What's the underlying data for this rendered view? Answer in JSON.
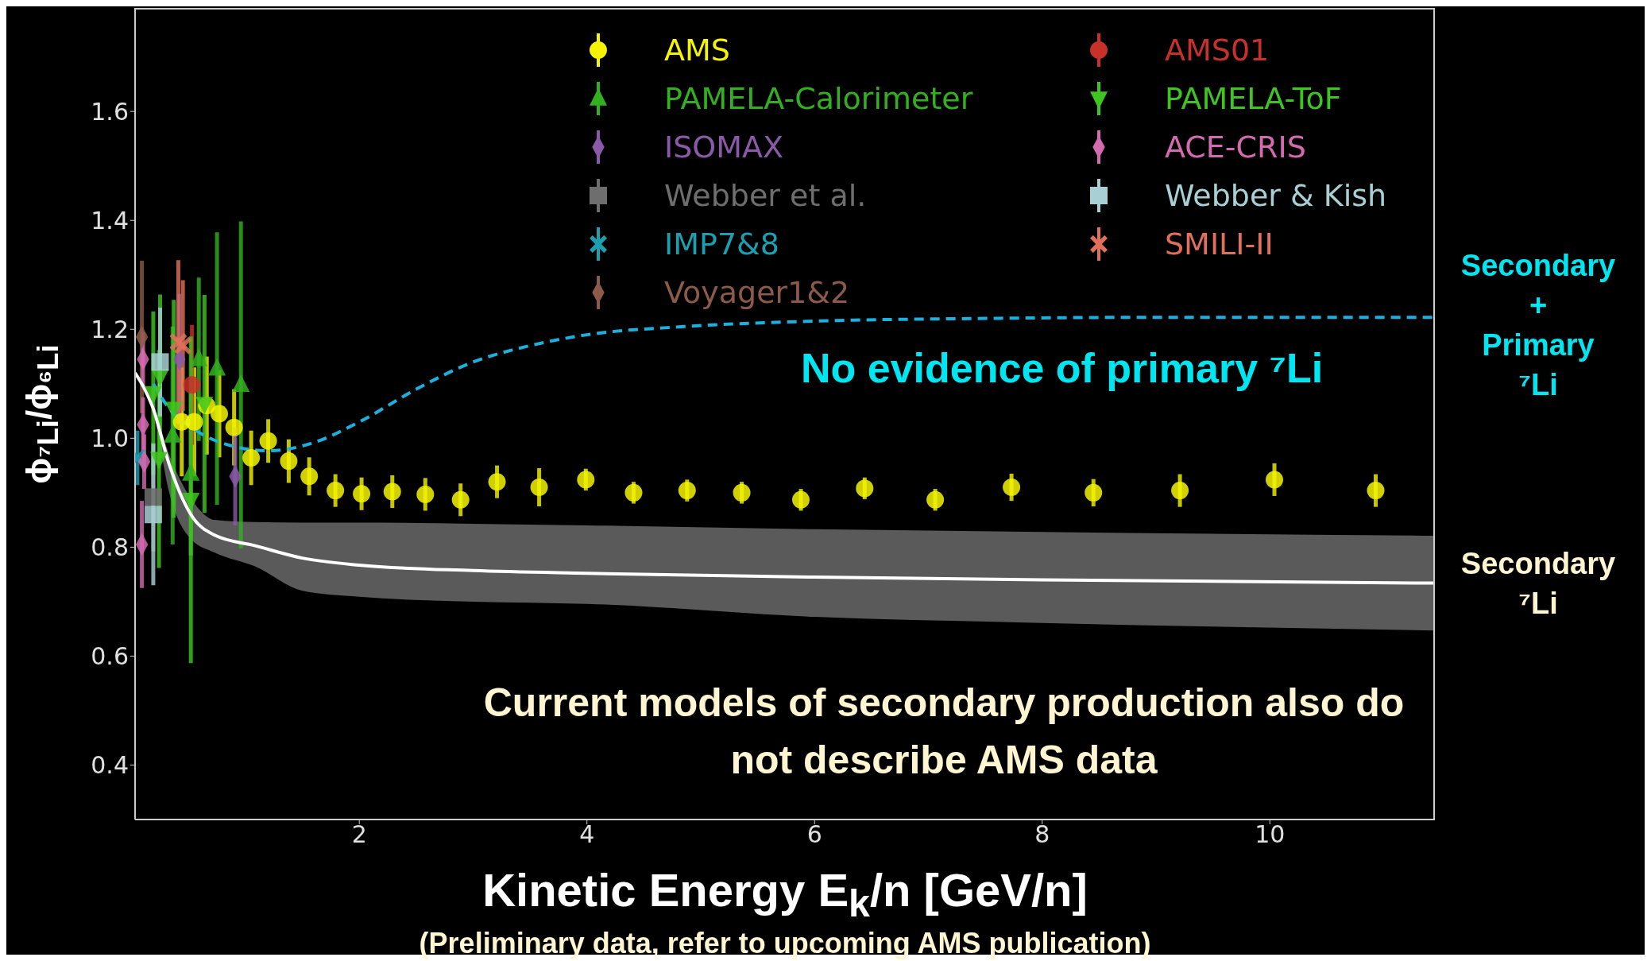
{
  "chart_data": {
    "type": "scatter",
    "xlabel": "Kinetic Energy E$_{k}$/n [GeV/n]",
    "ylabel": "ϕ$_{⁷Li}$/ϕ$_{⁶Li}$",
    "xlim": [
      0.03,
      11.45
    ],
    "ylim": [
      0.3,
      1.79
    ],
    "xticks": [
      2,
      4,
      6,
      8,
      10
    ],
    "yticks": [
      {
        "value": 0.4,
        "label": "0.4"
      },
      {
        "value": 0.6,
        "label": "0.6"
      },
      {
        "value": 0.8,
        "label": "0.8"
      },
      {
        "value": 1,
        "label": "1.0"
      },
      {
        "value": 1.2,
        "label": "1.2"
      },
      {
        "value": 1.4,
        "label": "1.4"
      },
      {
        "value": 1.6,
        "label": "1.6"
      }
    ],
    "legend": "top",
    "annotations": [
      "No evidence of primary ⁷Li",
      "Current models of secondary production also do not describe AMS data",
      "(Preliminary data, refer to upcoming AMS publication)"
    ],
    "series": [
      {
        "name": "AMS",
        "marker": "circle",
        "color": "#f5f500",
        "x": [
          0.44,
          0.55,
          0.66,
          0.77,
          0.9,
          1.05,
          1.2,
          1.38,
          1.56,
          1.79,
          2.02,
          2.29,
          2.58,
          2.89,
          3.21,
          3.58,
          3.99,
          4.41,
          4.88,
          5.36,
          5.88,
          6.44,
          7.06,
          7.73,
          8.45,
          9.21,
          10.04,
          10.93
        ],
        "values": [
          1.03,
          1.03,
          1.06,
          1.045,
          1.02,
          0.964,
          0.995,
          0.958,
          0.93,
          0.904,
          0.898,
          0.902,
          0.897,
          0.887,
          0.92,
          0.91,
          0.924,
          0.9,
          0.904,
          0.9,
          0.887,
          0.908,
          0.887,
          0.91,
          0.9,
          0.904,
          0.924,
          0.904
        ],
        "errors": [
          0.1,
          0.1,
          0.09,
          0.08,
          0.07,
          0.05,
          0.04,
          0.04,
          0.035,
          0.03,
          0.03,
          0.03,
          0.03,
          0.03,
          0.03,
          0.035,
          0.02,
          0.02,
          0.02,
          0.02,
          0.02,
          0.02,
          0.02,
          0.025,
          0.025,
          0.03,
          0.03,
          0.03
        ]
      },
      {
        "name": "PAMELA-Calorimeter",
        "marker": "triangle",
        "color": "#33b020",
        "x": [
          0.36,
          0.52,
          0.59,
          0.75,
          0.96
        ],
        "values": [
          1.005,
          0.935,
          1.145,
          1.128,
          1.098
        ],
        "errors": [
          0.2,
          0.15,
          0.15,
          0.25,
          0.3
        ]
      },
      {
        "name": "ISOMAX",
        "marker": "diamond",
        "color": "#8a5aa8",
        "x": [
          0.42,
          0.91
        ],
        "values": [
          1.145,
          0.93
        ],
        "errors": [
          0.12,
          0.09
        ]
      },
      {
        "name": "Webber et al.",
        "marker": "square",
        "color": "#6e6e6e",
        "x": [
          0.19
        ],
        "values": [
          0.892
        ],
        "errors": [
          0.1
        ]
      },
      {
        "name": "IMP7&8",
        "marker": "cross",
        "color": "#1aa0b0",
        "x": [
          0.05
        ],
        "values": [
          0.964
        ],
        "errors": [
          0.05
        ]
      },
      {
        "name": "Voyager1&2",
        "marker": "diamond",
        "color": "#8c5a48",
        "x": [
          0.09
        ],
        "values": [
          1.186
        ],
        "errors": [
          0.14
        ]
      },
      {
        "name": "AMS01",
        "marker": "circle",
        "color": "#c8302a",
        "x": [
          0.53
        ],
        "values": [
          1.098
        ],
        "errors": [
          0.11
        ]
      },
      {
        "name": "PAMELA-ToF",
        "marker": "triangle-down",
        "color": "#3fc51f",
        "x": [
          0.19,
          0.24,
          0.25,
          0.37,
          0.52,
          0.64
        ],
        "values": [
          1.083,
          0.962,
          1.114,
          1.054,
          0.887,
          1.063
        ],
        "errors": [
          0.15,
          0.2,
          0.15,
          0.2,
          0.3,
          0.2
        ]
      },
      {
        "name": "ACE-CRIS",
        "marker": "diamond",
        "color": "#d46ab0",
        "x": [
          0.09,
          0.1,
          0.1,
          0.11
        ],
        "values": [
          0.805,
          1.145,
          1.025,
          0.957
        ],
        "errors": [
          0.08,
          0.05,
          0.05,
          0.05
        ]
      },
      {
        "name": "Webber & Kish",
        "marker": "square",
        "color": "#a8d0d4",
        "x": [
          0.19,
          0.25
        ],
        "values": [
          0.86,
          1.14
        ],
        "errors": [
          0.13,
          0.1
        ]
      },
      {
        "name": "SMILI-II",
        "marker": "cross",
        "color": "#e0705a",
        "x": [
          0.41,
          0.45
        ],
        "values": [
          1.177,
          1.17
        ],
        "errors": [
          0.15,
          0.12
        ]
      },
      {
        "name": "Secondary + Primary ⁷Li",
        "type": "line",
        "line_style": "dashed",
        "color": "#1ab0e0",
        "x": [
          0.19,
          0.3,
          0.56,
          0.88,
          1.2,
          1.57,
          2.0,
          2.5,
          3.0,
          3.5,
          4.0,
          4.85,
          6.0,
          7.5,
          9,
          11.45
        ],
        "values": [
          1.1,
          1.063,
          1.015,
          0.986,
          0.977,
          0.99,
          1.03,
          1.09,
          1.14,
          1.17,
          1.19,
          1.205,
          1.215,
          1.22,
          1.222,
          1.222
        ]
      },
      {
        "name": "Secondary ⁷Li",
        "type": "line",
        "line_style": "solid",
        "color": "#ffffff",
        "x": [
          0.03,
          0.19,
          0.33,
          0.52,
          0.73,
          1.08,
          1.5,
          2,
          3,
          4,
          6,
          8,
          11.45
        ],
        "values": [
          1.12,
          1.054,
          0.952,
          0.86,
          0.822,
          0.803,
          0.78,
          0.767,
          0.757,
          0.752,
          0.745,
          0.74,
          0.734
        ],
        "upper": [
          1.12,
          1.06,
          0.97,
          0.89,
          0.85,
          0.846,
          0.845,
          0.845,
          0.843,
          0.84,
          0.833,
          0.828,
          0.821
        ],
        "lower": [
          1.12,
          1.05,
          0.9,
          0.815,
          0.79,
          0.765,
          0.72,
          0.709,
          0.7,
          0.696,
          0.672,
          0.661,
          0.647
        ]
      }
    ]
  }
}
